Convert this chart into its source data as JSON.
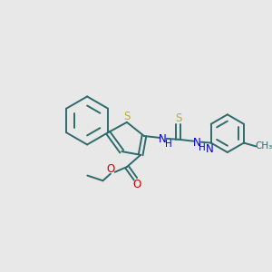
{
  "background_color": "#e8e8e8",
  "bond_color": "#2d6b6b",
  "S_color": "#b8b800",
  "N_color": "#0000cc",
  "O_color": "#cc0000",
  "figsize": [
    3.0,
    3.0
  ],
  "dpi": 100,
  "xlim": [
    0,
    300
  ],
  "ylim": [
    0,
    300
  ]
}
